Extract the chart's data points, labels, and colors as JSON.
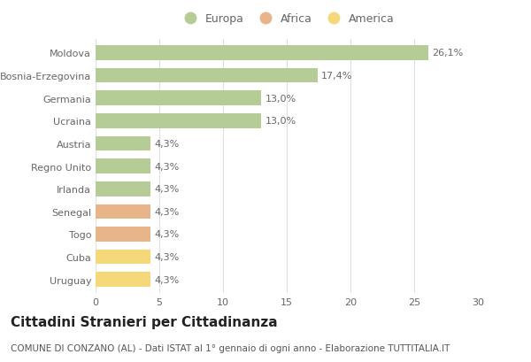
{
  "categories": [
    "Moldova",
    "Bosnia-Erzegovina",
    "Germania",
    "Ucraina",
    "Austria",
    "Regno Unito",
    "Irlanda",
    "Senegal",
    "Togo",
    "Cuba",
    "Uruguay"
  ],
  "values": [
    26.1,
    17.4,
    13.0,
    13.0,
    4.3,
    4.3,
    4.3,
    4.3,
    4.3,
    4.3,
    4.3
  ],
  "labels": [
    "26,1%",
    "17,4%",
    "13,0%",
    "13,0%",
    "4,3%",
    "4,3%",
    "4,3%",
    "4,3%",
    "4,3%",
    "4,3%",
    "4,3%"
  ],
  "continent": [
    "Europa",
    "Europa",
    "Europa",
    "Europa",
    "Europa",
    "Europa",
    "Europa",
    "Africa",
    "Africa",
    "America",
    "America"
  ],
  "colors": {
    "Europa": "#b5cc96",
    "Africa": "#e8b48a",
    "America": "#f5d87a"
  },
  "legend_entries": [
    "Europa",
    "Africa",
    "America"
  ],
  "legend_colors": [
    "#b5cc96",
    "#e8b48a",
    "#f5d87a"
  ],
  "xlim": [
    0,
    30
  ],
  "xticks": [
    0,
    5,
    10,
    15,
    20,
    25,
    30
  ],
  "title": "Cittadini Stranieri per Cittadinanza",
  "subtitle": "COMUNE DI CONZANO (AL) - Dati ISTAT al 1° gennaio di ogni anno - Elaborazione TUTTITALIA.IT",
  "background_color": "#ffffff",
  "grid_color": "#e0e0e0",
  "bar_height": 0.65,
  "title_fontsize": 11,
  "subtitle_fontsize": 7.5,
  "label_fontsize": 8,
  "tick_fontsize": 8,
  "legend_fontsize": 9
}
